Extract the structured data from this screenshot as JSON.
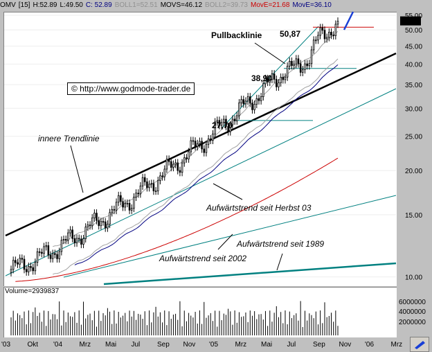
{
  "header": {
    "symbol": "OMV",
    "period": "[15]",
    "high": "H:52.89",
    "low": "L:49.50",
    "close": "C: 52.89",
    "boll1": "BOLL1=52.51",
    "movs": "MOVS=46.12",
    "boll2": "BOLL2=39.73",
    "move1": "MovE=21.68",
    "move2": "MovE=36.10"
  },
  "colors": {
    "candle": "#000000",
    "bollinger": "#a0a0a0",
    "move_short": "#000080",
    "move_long": "#cc0000",
    "trend": "#008080",
    "pullback": "#000000",
    "resistance": "#cc0000",
    "forecast_arrow": "#1a3fd6"
  },
  "annotations": {
    "pullback_label": "Pullbacklinie",
    "level_5087": "50,87",
    "level_3890": "38,90",
    "level_2770": "27,70",
    "inner_trend": "innere Trendlinie",
    "trend_herbst03": "Aufwärtstrend seit Herbst 03",
    "trend_1989": "Aufwärtstrend seit 1989",
    "trend_2002": "Aufwärtstrend seit 2002",
    "copyright": "© http://www.godmode-trader.de"
  },
  "price_badge": "52.89",
  "volume_label": "Volume=2939837",
  "chart_data": {
    "type": "candlestick",
    "y_scale": "log",
    "ylim": [
      9.5,
      56
    ],
    "y_ticks": [
      "55.00",
      "50.00",
      "45.00",
      "40.00",
      "35.00",
      "30.00",
      "25.00",
      "20.00",
      "15.00",
      "10.00"
    ],
    "x_ticks": [
      "'03",
      "Okt",
      "'04",
      "Mrz",
      "Mai",
      "Jul",
      "Sep",
      "Nov",
      "'05",
      "Mrz",
      "Mai",
      "Jul",
      "Sep",
      "Nov",
      "'06",
      "Mrz"
    ],
    "volume_ticks": [
      "6000000",
      "4000000",
      "2000000"
    ],
    "weekly_close_start": 10.5,
    "weekly_close_end": 52.89,
    "levels": [
      50.87,
      38.9,
      27.7
    ]
  }
}
